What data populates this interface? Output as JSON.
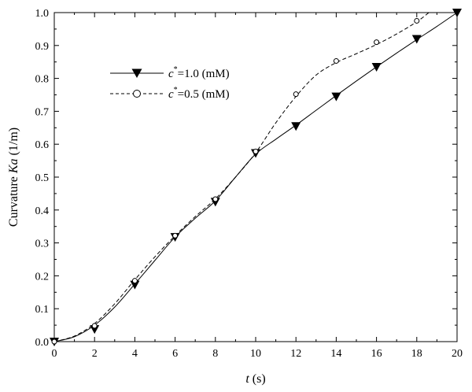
{
  "chart_data": {
    "type": "line",
    "xlabel": {
      "var": "t",
      "unit": " (s)"
    },
    "ylabel": {
      "prefix": "Curvature ",
      "var": "Ka",
      "unit": " (1/m)"
    },
    "xlim": [
      0,
      20
    ],
    "ylim": [
      0,
      1.0
    ],
    "xticks": [
      "0",
      "2",
      "4",
      "6",
      "8",
      "10",
      "12",
      "14",
      "16",
      "18",
      "20"
    ],
    "yticks": [
      "0.0",
      "0.1",
      "0.2",
      "0.3",
      "0.4",
      "0.5",
      "0.6",
      "0.7",
      "0.8",
      "0.9",
      "1.0"
    ],
    "grid": false,
    "legend_position": "upper-left",
    "series": [
      {
        "name": "c*=1.0 (mM)",
        "legend": {
          "c": "c",
          "sup": "*",
          "rest": "=1.0 (mM)"
        },
        "marker": "filled-down-triangle",
        "line_style": "solid",
        "color": "#000000",
        "x": [
          0,
          2,
          4,
          6,
          8,
          10,
          12,
          14,
          16,
          18,
          20
        ],
        "y": [
          0.0,
          0.038,
          0.173,
          0.318,
          0.425,
          0.573,
          0.655,
          0.745,
          0.835,
          0.92,
          1.0
        ],
        "curve": [
          [
            0,
            0.0
          ],
          [
            1,
            0.015
          ],
          [
            2,
            0.05
          ],
          [
            3,
            0.105
          ],
          [
            4,
            0.175
          ],
          [
            5,
            0.247
          ],
          [
            6,
            0.318
          ],
          [
            7,
            0.375
          ],
          [
            8,
            0.428
          ],
          [
            9,
            0.5
          ],
          [
            10,
            0.57
          ],
          [
            11,
            0.615
          ],
          [
            12,
            0.658
          ],
          [
            13,
            0.703
          ],
          [
            14,
            0.748
          ],
          [
            15,
            0.792
          ],
          [
            16,
            0.835
          ],
          [
            17,
            0.877
          ],
          [
            18,
            0.918
          ],
          [
            19,
            0.958
          ],
          [
            20,
            1.0
          ]
        ]
      },
      {
        "name": "c*=0.5 (mM)",
        "legend": {
          "c": "c",
          "sup": "*",
          "rest": "=0.5 (mM)"
        },
        "marker": "open-circle",
        "line_style": "dashed",
        "color": "#000000",
        "x": [
          0,
          2,
          4,
          6,
          8,
          10,
          12,
          14,
          16,
          18
        ],
        "y": [
          0.0,
          0.048,
          0.185,
          0.322,
          0.433,
          0.578,
          0.752,
          0.853,
          0.91,
          0.975
        ],
        "curve": [
          [
            0,
            0.0
          ],
          [
            1,
            0.017
          ],
          [
            2,
            0.055
          ],
          [
            3,
            0.115
          ],
          [
            4,
            0.188
          ],
          [
            5,
            0.258
          ],
          [
            6,
            0.322
          ],
          [
            7,
            0.38
          ],
          [
            8,
            0.434
          ],
          [
            9,
            0.5
          ],
          [
            10,
            0.574
          ],
          [
            11,
            0.665
          ],
          [
            12,
            0.745
          ],
          [
            13,
            0.81
          ],
          [
            14,
            0.848
          ],
          [
            15,
            0.875
          ],
          [
            16,
            0.903
          ],
          [
            17,
            0.935
          ],
          [
            18,
            0.972
          ],
          [
            18.6,
            1.0
          ]
        ]
      }
    ]
  }
}
